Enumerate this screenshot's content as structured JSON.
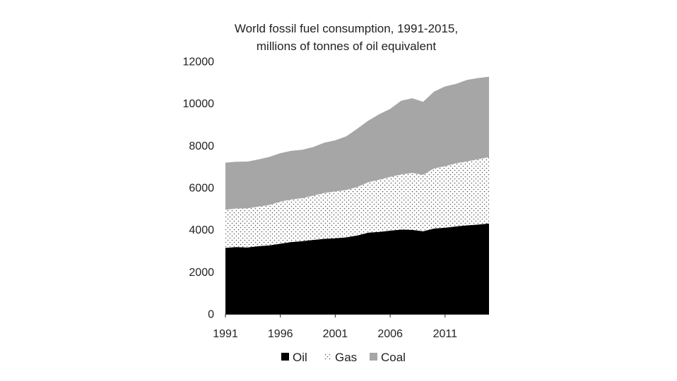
{
  "chart_data": {
    "type": "area",
    "stacked": true,
    "title_line1": "World fossil fuel consumption, 1991-2015,",
    "title_line2": "millions of tonnes of oil equivalent",
    "xlabel": "",
    "ylabel": "",
    "x": [
      1991,
      1992,
      1993,
      1994,
      1995,
      1996,
      1997,
      1998,
      1999,
      2000,
      2001,
      2002,
      2003,
      2004,
      2005,
      2006,
      2007,
      2008,
      2009,
      2010,
      2011,
      2012,
      2013,
      2014,
      2015
    ],
    "x_ticks": [
      "1991",
      "1996",
      "2001",
      "2006",
      "2011"
    ],
    "ylim": [
      0,
      12000
    ],
    "y_ticks": [
      "0",
      "2000",
      "4000",
      "6000",
      "8000",
      "10000",
      "12000"
    ],
    "grid": false,
    "legend_position": "bottom",
    "series": [
      {
        "name": "Oil",
        "pattern": "solid",
        "color": "#000000",
        "values": [
          3140,
          3180,
          3160,
          3220,
          3260,
          3340,
          3420,
          3460,
          3520,
          3570,
          3600,
          3640,
          3730,
          3860,
          3900,
          3960,
          4010,
          4000,
          3930,
          4060,
          4100,
          4160,
          4210,
          4250,
          4300
        ]
      },
      {
        "name": "Gas",
        "pattern": "dotted",
        "color": "#555555",
        "values": [
          1810,
          1830,
          1860,
          1880,
          1920,
          2000,
          2020,
          2040,
          2100,
          2180,
          2220,
          2250,
          2300,
          2400,
          2480,
          2550,
          2620,
          2700,
          2680,
          2860,
          2920,
          3000,
          3040,
          3100,
          3150
        ]
      },
      {
        "name": "Coal",
        "pattern": "solid",
        "color": "#a6a6a6",
        "values": [
          2240,
          2220,
          2220,
          2240,
          2280,
          2300,
          2310,
          2300,
          2310,
          2390,
          2430,
          2550,
          2770,
          2920,
          3110,
          3230,
          3500,
          3550,
          3470,
          3650,
          3790,
          3770,
          3870,
          3860,
          3820
        ]
      }
    ]
  }
}
